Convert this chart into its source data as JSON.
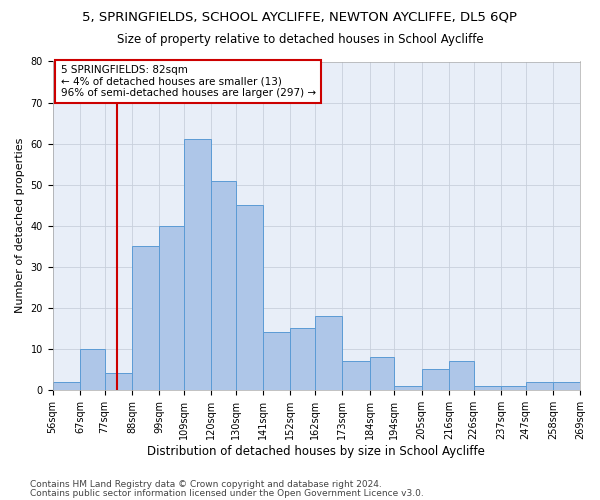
{
  "title1": "5, SPRINGFIELDS, SCHOOL AYCLIFFE, NEWTON AYCLIFFE, DL5 6QP",
  "title2": "Size of property relative to detached houses in School Aycliffe",
  "xlabel": "Distribution of detached houses by size in School Aycliffe",
  "ylabel": "Number of detached properties",
  "annotation_line1": "5 SPRINGFIELDS: 82sqm",
  "annotation_line2": "← 4% of detached houses are smaller (13)",
  "annotation_line3": "96% of semi-detached houses are larger (297) →",
  "property_size_sqm": 82,
  "bin_edges": [
    56,
    67,
    77,
    88,
    99,
    109,
    120,
    130,
    141,
    152,
    162,
    173,
    184,
    194,
    205,
    216,
    226,
    237,
    247,
    258,
    269
  ],
  "bar_heights": [
    2,
    10,
    4,
    35,
    40,
    61,
    51,
    45,
    14,
    15,
    18,
    7,
    8,
    1,
    5,
    7,
    1,
    1,
    2,
    2
  ],
  "bar_color": "#aec6e8",
  "bar_edge_color": "#5b9bd5",
  "vline_color": "#cc0000",
  "vline_x": 82,
  "ylim": [
    0,
    80
  ],
  "yticks": [
    0,
    10,
    20,
    30,
    40,
    50,
    60,
    70,
    80
  ],
  "grid_color": "#c8d0dc",
  "bg_color": "#e8eef8",
  "annotation_box_color": "#cc0000",
  "footer1": "Contains HM Land Registry data © Crown copyright and database right 2024.",
  "footer2": "Contains public sector information licensed under the Open Government Licence v3.0.",
  "title1_fontsize": 9.5,
  "title2_fontsize": 8.5,
  "xlabel_fontsize": 8.5,
  "ylabel_fontsize": 8,
  "tick_fontsize": 7,
  "footer_fontsize": 6.5,
  "annotation_fontsize": 7.5
}
